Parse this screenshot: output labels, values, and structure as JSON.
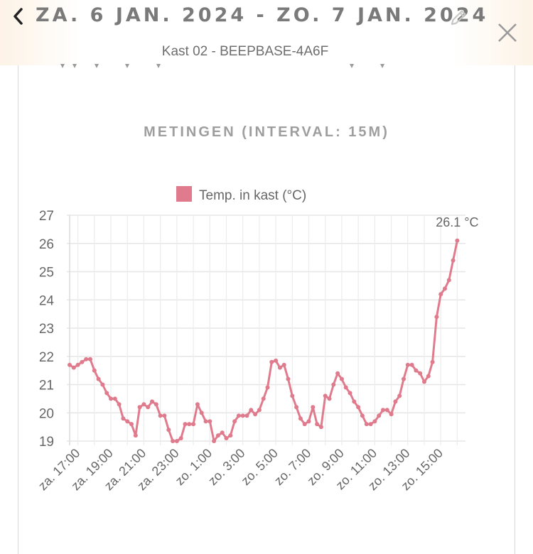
{
  "header": {
    "title": "ZA. 6 JAN. 2024 - ZO. 7 JAN. 2024",
    "subtitle": "Kast 02 - BEEPBASE-4A6F"
  },
  "section": {
    "title": "METINGEN (INTERVAL: 15M)"
  },
  "chart_data": {
    "type": "line",
    "legend_position": "top",
    "series": [
      {
        "name": "Temp. in kast (°C)",
        "color": "#e07b8d",
        "x_hours": [
          16.5,
          16.75,
          17,
          17.25,
          17.5,
          17.75,
          18,
          18.25,
          18.5,
          18.75,
          19,
          19.25,
          19.5,
          19.75,
          20,
          20.25,
          20.5,
          20.75,
          21,
          21.25,
          21.5,
          21.75,
          22,
          22.25,
          22.5,
          22.75,
          23,
          23.25,
          23.5,
          23.75,
          24,
          24.25,
          24.5,
          24.75,
          25,
          25.25,
          25.5,
          25.75,
          26,
          26.25,
          26.5,
          26.75,
          27,
          27.25,
          27.5,
          27.75,
          28,
          28.25,
          28.5,
          28.75,
          29,
          29.25,
          29.5,
          29.75,
          30,
          30.25,
          30.5,
          30.75,
          31,
          31.25,
          31.5,
          31.75,
          32,
          32.25,
          32.5,
          32.75,
          33,
          33.25,
          33.5,
          33.75,
          34,
          34.25,
          34.5,
          34.75,
          35,
          35.25,
          35.5,
          35.75,
          36,
          36.25,
          36.5,
          36.75,
          37,
          37.25,
          37.5,
          37.75,
          38,
          38.25,
          38.5,
          38.75,
          39,
          39.25,
          39.5,
          39.75,
          40
        ],
        "values": [
          21.7,
          21.6,
          21.7,
          21.8,
          21.9,
          21.9,
          21.5,
          21.2,
          21.0,
          20.7,
          20.5,
          20.5,
          20.3,
          19.8,
          19.7,
          19.6,
          19.2,
          20.2,
          20.3,
          20.2,
          20.4,
          20.3,
          19.9,
          19.9,
          19.4,
          19.0,
          19.0,
          19.1,
          19.6,
          19.6,
          19.6,
          20.3,
          20.0,
          19.7,
          19.7,
          19.0,
          19.2,
          19.3,
          19.1,
          19.2,
          19.7,
          19.9,
          19.9,
          19.9,
          20.1,
          19.95,
          20.1,
          20.5,
          20.9,
          21.8,
          21.85,
          21.6,
          21.7,
          21.2,
          20.6,
          20.2,
          19.8,
          19.6,
          19.7,
          20.2,
          19.6,
          19.5,
          20.6,
          20.5,
          21.0,
          21.4,
          21.2,
          20.9,
          20.7,
          20.4,
          20.2,
          19.9,
          19.6,
          19.6,
          19.7,
          19.9,
          20.1,
          20.1,
          19.95,
          20.4,
          20.6,
          21.2,
          21.7,
          21.7,
          21.5,
          21.4,
          21.1,
          21.3,
          21.8,
          23.4,
          24.2,
          24.4,
          24.7,
          25.4,
          26.1
        ]
      }
    ],
    "x_tick_labels": [
      "za. 17:00",
      "za. 19:00",
      "za. 21:00",
      "za. 23:00",
      "zo. 1:00",
      "zo. 3:00",
      "zo. 5:00",
      "zo. 7:00",
      "zo. 9:00",
      "zo. 11:00",
      "zo. 13:00",
      "zo. 15:00"
    ],
    "y_tick_labels": [
      "27",
      "26",
      "25",
      "24",
      "23",
      "22",
      "21",
      "20",
      "19"
    ],
    "ylim": [
      19,
      27
    ],
    "last_value_label": "26.1 °C",
    "grid": true
  }
}
